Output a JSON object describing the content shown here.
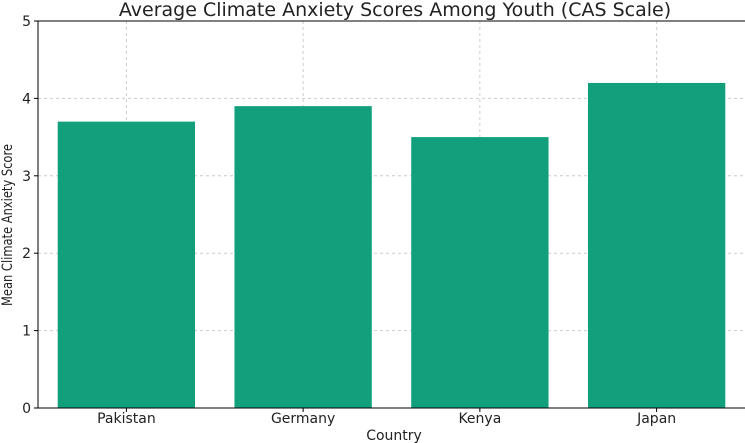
{
  "chart_data": {
    "type": "bar",
    "title": "Average Climate Anxiety Scores Among Youth (CAS Scale)",
    "xlabel": "Country",
    "ylabel": "Mean Climate Anxiety Score",
    "categories": [
      "Pakistan",
      "Germany",
      "Kenya",
      "Japan"
    ],
    "values": [
      3.7,
      3.9,
      3.5,
      4.2
    ],
    "ylim": [
      0,
      5
    ],
    "yticks": [
      0,
      1,
      2,
      3,
      4,
      5
    ],
    "grid": true,
    "bar_color": "#12a07c",
    "grid_color": "#cccccc",
    "axis_color": "#000000"
  }
}
